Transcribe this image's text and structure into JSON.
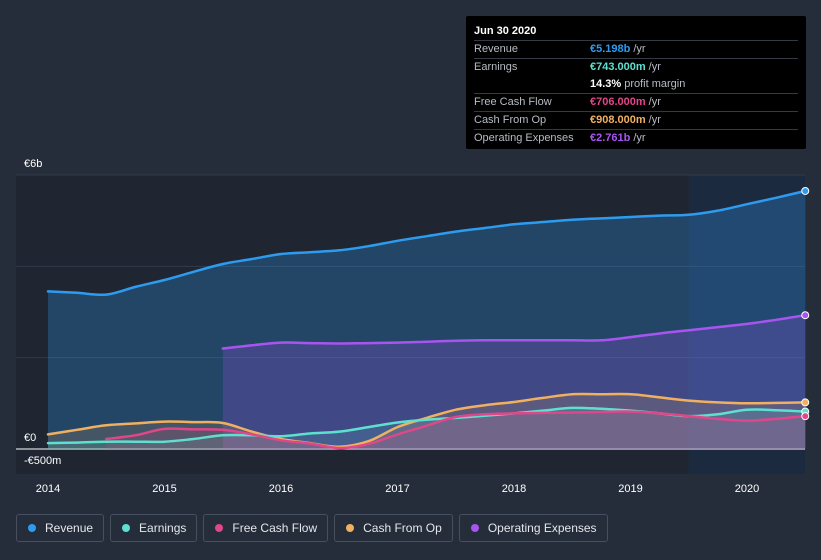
{
  "tooltip": {
    "date": "Jun 30 2020",
    "rows": {
      "revenue": {
        "label": "Revenue",
        "value": "€5.198b",
        "unit": "/yr",
        "color": "#2d9cf0"
      },
      "earnings": {
        "label": "Earnings",
        "value": "€743.000m",
        "unit": "/yr",
        "color": "#5ee0d0"
      },
      "margin": {
        "value": "14.3%",
        "unit": "profit margin"
      },
      "fcf": {
        "label": "Free Cash Flow",
        "value": "€706.000m",
        "unit": "/yr",
        "color": "#e0468a"
      },
      "cfo": {
        "label": "Cash From Op",
        "value": "€908.000m",
        "unit": "/yr",
        "color": "#f0b060"
      },
      "opex": {
        "label": "Operating Expenses",
        "value": "€2.761b",
        "unit": "/yr",
        "color": "#a855f0"
      }
    }
  },
  "legend": {
    "revenue": "Revenue",
    "earnings": "Earnings",
    "fcf": "Free Cash Flow",
    "cfo": "Cash From Op",
    "opex": "Operating Expenses"
  },
  "colors": {
    "background": "#252d3a",
    "revenue": "#2d9cf0",
    "earnings": "#5ee0d0",
    "fcf": "#e0468a",
    "cfo": "#f0b060",
    "opex": "#a855f0"
  },
  "chart_data": {
    "type": "area",
    "title": "",
    "xlabel": "",
    "ylabel": "",
    "currency": "EUR",
    "y_tick_labels": [
      "€6b",
      "€0",
      "-€500m"
    ],
    "y_ticks_values": [
      6000,
      0,
      -500
    ],
    "x_tick_labels": [
      "2014",
      "2015",
      "2016",
      "2017",
      "2018",
      "2019",
      "2020"
    ],
    "xlim": [
      2014.0,
      2020.5
    ],
    "ylim": [
      -500,
      6000
    ],
    "forecast_region_start": 2019.5,
    "units": "EUR millions",
    "series": [
      {
        "name": "Revenue",
        "key": "revenue",
        "filled": true,
        "x": [
          2014.0,
          2014.25,
          2014.5,
          2014.75,
          2015.0,
          2015.25,
          2015.5,
          2015.75,
          2016.0,
          2016.25,
          2016.5,
          2016.75,
          2017.0,
          2017.25,
          2017.5,
          2017.75,
          2018.0,
          2018.25,
          2018.5,
          2018.75,
          2019.0,
          2019.25,
          2019.5,
          2019.75,
          2020.0,
          2020.25,
          2020.5
        ],
        "values": [
          3450,
          3420,
          3380,
          3550,
          3700,
          3880,
          4050,
          4160,
          4270,
          4310,
          4350,
          4440,
          4560,
          4660,
          4760,
          4840,
          4920,
          4970,
          5020,
          5050,
          5080,
          5110,
          5130,
          5220,
          5360,
          5500,
          5650
        ]
      },
      {
        "name": "Operating Expenses",
        "key": "opex",
        "filled": true,
        "x": [
          2015.5,
          2015.75,
          2016.0,
          2016.25,
          2016.5,
          2016.75,
          2017.0,
          2017.25,
          2017.5,
          2017.75,
          2018.0,
          2018.25,
          2018.5,
          2018.75,
          2019.0,
          2019.25,
          2019.5,
          2019.75,
          2020.0,
          2020.25,
          2020.5
        ],
        "values": [
          2200,
          2270,
          2330,
          2320,
          2310,
          2320,
          2330,
          2350,
          2370,
          2380,
          2380,
          2380,
          2380,
          2380,
          2450,
          2530,
          2600,
          2670,
          2740,
          2830,
          2930
        ]
      },
      {
        "name": "Cash From Op",
        "key": "cfo",
        "filled": true,
        "x": [
          2014.0,
          2014.25,
          2014.5,
          2014.75,
          2015.0,
          2015.25,
          2015.5,
          2015.75,
          2016.0,
          2016.25,
          2016.5,
          2016.75,
          2017.0,
          2017.25,
          2017.5,
          2017.75,
          2018.0,
          2018.25,
          2018.5,
          2018.75,
          2019.0,
          2019.25,
          2019.5,
          2019.75,
          2020.0,
          2020.25,
          2020.5
        ],
        "values": [
          320,
          420,
          520,
          560,
          600,
          590,
          570,
          380,
          220,
          130,
          50,
          170,
          480,
          680,
          860,
          960,
          1030,
          1120,
          1200,
          1200,
          1200,
          1130,
          1060,
          1020,
          1000,
          1010,
          1020
        ]
      },
      {
        "name": "Earnings",
        "key": "earnings",
        "filled": true,
        "x": [
          2014.0,
          2014.25,
          2014.5,
          2014.75,
          2015.0,
          2015.25,
          2015.5,
          2015.75,
          2016.0,
          2016.25,
          2016.5,
          2016.75,
          2017.0,
          2017.25,
          2017.5,
          2017.75,
          2018.0,
          2018.25,
          2018.5,
          2018.75,
          2019.0,
          2019.25,
          2019.5,
          2019.75,
          2020.0,
          2020.25,
          2020.5
        ],
        "values": [
          130,
          140,
          160,
          160,
          160,
          220,
          300,
          300,
          280,
          340,
          380,
          480,
          580,
          640,
          680,
          730,
          780,
          840,
          900,
          880,
          840,
          780,
          720,
          760,
          860,
          850,
          820
        ]
      },
      {
        "name": "Free Cash Flow",
        "key": "fcf",
        "filled": true,
        "x": [
          2014.5,
          2014.75,
          2015.0,
          2015.25,
          2015.5,
          2015.75,
          2016.0,
          2016.25,
          2016.5,
          2016.75,
          2017.0,
          2017.25,
          2017.5,
          2017.75,
          2018.0,
          2018.25,
          2018.5,
          2018.75,
          2019.0,
          2019.25,
          2019.5,
          2019.75,
          2020.0,
          2020.25,
          2020.5
        ],
        "values": [
          220,
          300,
          440,
          430,
          420,
          320,
          190,
          120,
          20,
          110,
          320,
          510,
          700,
          760,
          780,
          790,
          800,
          810,
          820,
          780,
          720,
          660,
          620,
          660,
          720
        ]
      }
    ]
  }
}
